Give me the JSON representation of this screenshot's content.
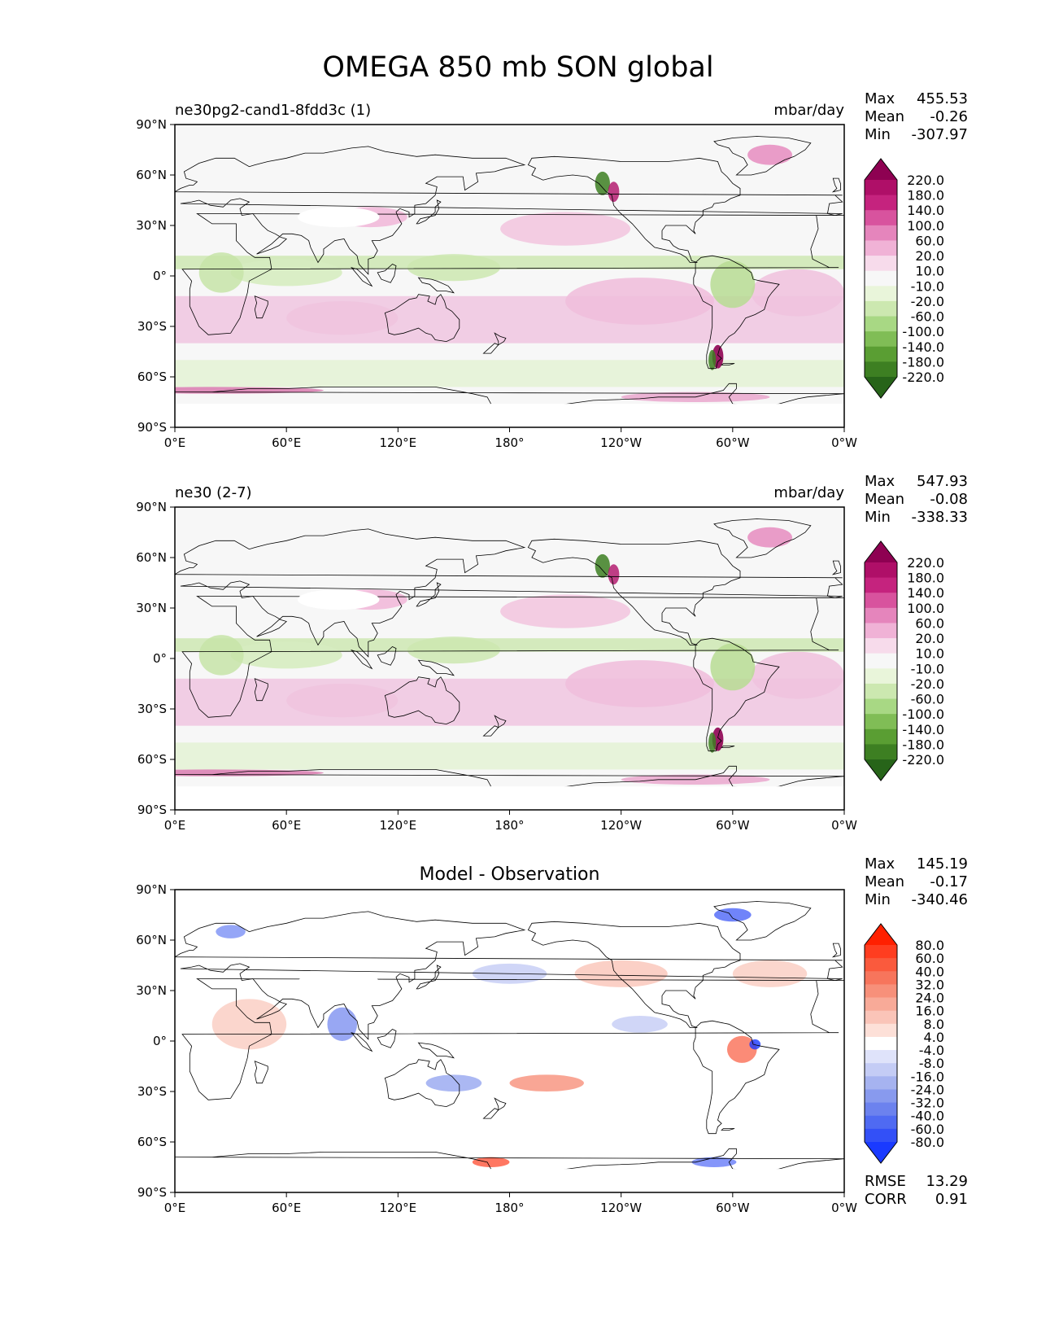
{
  "figure": {
    "title": "OMEGA 850 mb SON global",
    "x_ticks": [
      "0°E",
      "60°E",
      "120°E",
      "180°",
      "120°W",
      "60°W",
      "0°W"
    ],
    "y_ticks": [
      "90°N",
      "60°N",
      "30°N",
      "0°",
      "30°S",
      "60°S",
      "90°S"
    ]
  },
  "chart_data": [
    {
      "type": "heatmap",
      "panel": "test",
      "title_left": "ne30pg2-cand1-8fdd3c (1)",
      "title_center": "",
      "units": "mbar/day",
      "xlim": [
        0,
        360
      ],
      "ylim": [
        -90,
        90
      ],
      "stats": [
        {
          "label": "Max",
          "value": "455.53"
        },
        {
          "label": "Mean",
          "value": "-0.26"
        },
        {
          "label": "Min",
          "value": "-307.97"
        }
      ],
      "colorbar": {
        "extend": "both",
        "ticks": [
          "220.0",
          "180.0",
          "140.0",
          "100.0",
          "60.0",
          "20.0",
          "10.0",
          "-10.0",
          "-20.0",
          "-60.0",
          "-100.0",
          "-140.0",
          "-180.0",
          "-220.0"
        ],
        "colors": [
          "#8e0152",
          "#af0f68",
          "#c5237e",
          "#d8539e",
          "#e585bc",
          "#f0b2d6",
          "#f7dbeb",
          "#f7f7f7",
          "#e9f5da",
          "#cce8b0",
          "#a8d884",
          "#80bd56",
          "#5a9e33",
          "#3d7f22",
          "#276419"
        ]
      },
      "footer": []
    },
    {
      "type": "heatmap",
      "panel": "reference",
      "title_left": "ne30 (2-7)",
      "title_center": "",
      "units": "mbar/day",
      "xlim": [
        0,
        360
      ],
      "ylim": [
        -90,
        90
      ],
      "stats": [
        {
          "label": "Max",
          "value": "547.93"
        },
        {
          "label": "Mean",
          "value": "-0.08"
        },
        {
          "label": "Min",
          "value": "-338.33"
        }
      ],
      "colorbar": {
        "extend": "both",
        "ticks": [
          "220.0",
          "180.0",
          "140.0",
          "100.0",
          "60.0",
          "20.0",
          "10.0",
          "-10.0",
          "-20.0",
          "-60.0",
          "-100.0",
          "-140.0",
          "-180.0",
          "-220.0"
        ],
        "colors": [
          "#8e0152",
          "#af0f68",
          "#c5237e",
          "#d8539e",
          "#e585bc",
          "#f0b2d6",
          "#f7dbeb",
          "#f7f7f7",
          "#e9f5da",
          "#cce8b0",
          "#a8d884",
          "#80bd56",
          "#5a9e33",
          "#3d7f22",
          "#276419"
        ]
      },
      "footer": []
    },
    {
      "type": "heatmap",
      "panel": "difference",
      "title_left": "",
      "title_center": "Model - Observation",
      "units": "",
      "xlim": [
        0,
        360
      ],
      "ylim": [
        -90,
        90
      ],
      "stats": [
        {
          "label": "Max",
          "value": "145.19"
        },
        {
          "label": "Mean",
          "value": "-0.17"
        },
        {
          "label": "Min",
          "value": "-340.46"
        }
      ],
      "colorbar": {
        "extend": "both",
        "ticks": [
          "80.0",
          "60.0",
          "40.0",
          "32.0",
          "24.0",
          "16.0",
          "8.0",
          "4.0",
          "-4.0",
          "-8.0",
          "-16.0",
          "-24.0",
          "-32.0",
          "-40.0",
          "-60.0",
          "-80.0"
        ],
        "colors": [
          "#ff2000",
          "#ff3d20",
          "#fa5a3d",
          "#f7755c",
          "#f7907a",
          "#f8aa98",
          "#fac4b8",
          "#fde0d8",
          "#ffffff",
          "#dfe3fa",
          "#c4ccf5",
          "#a6b3f0",
          "#889aee",
          "#6c82ee",
          "#4f6af2",
          "#3350f7",
          "#1a3aff"
        ]
      },
      "footer": [
        {
          "label": "RMSE",
          "value": "13.29"
        },
        {
          "label": "CORR",
          "value": "0.91"
        }
      ]
    }
  ]
}
